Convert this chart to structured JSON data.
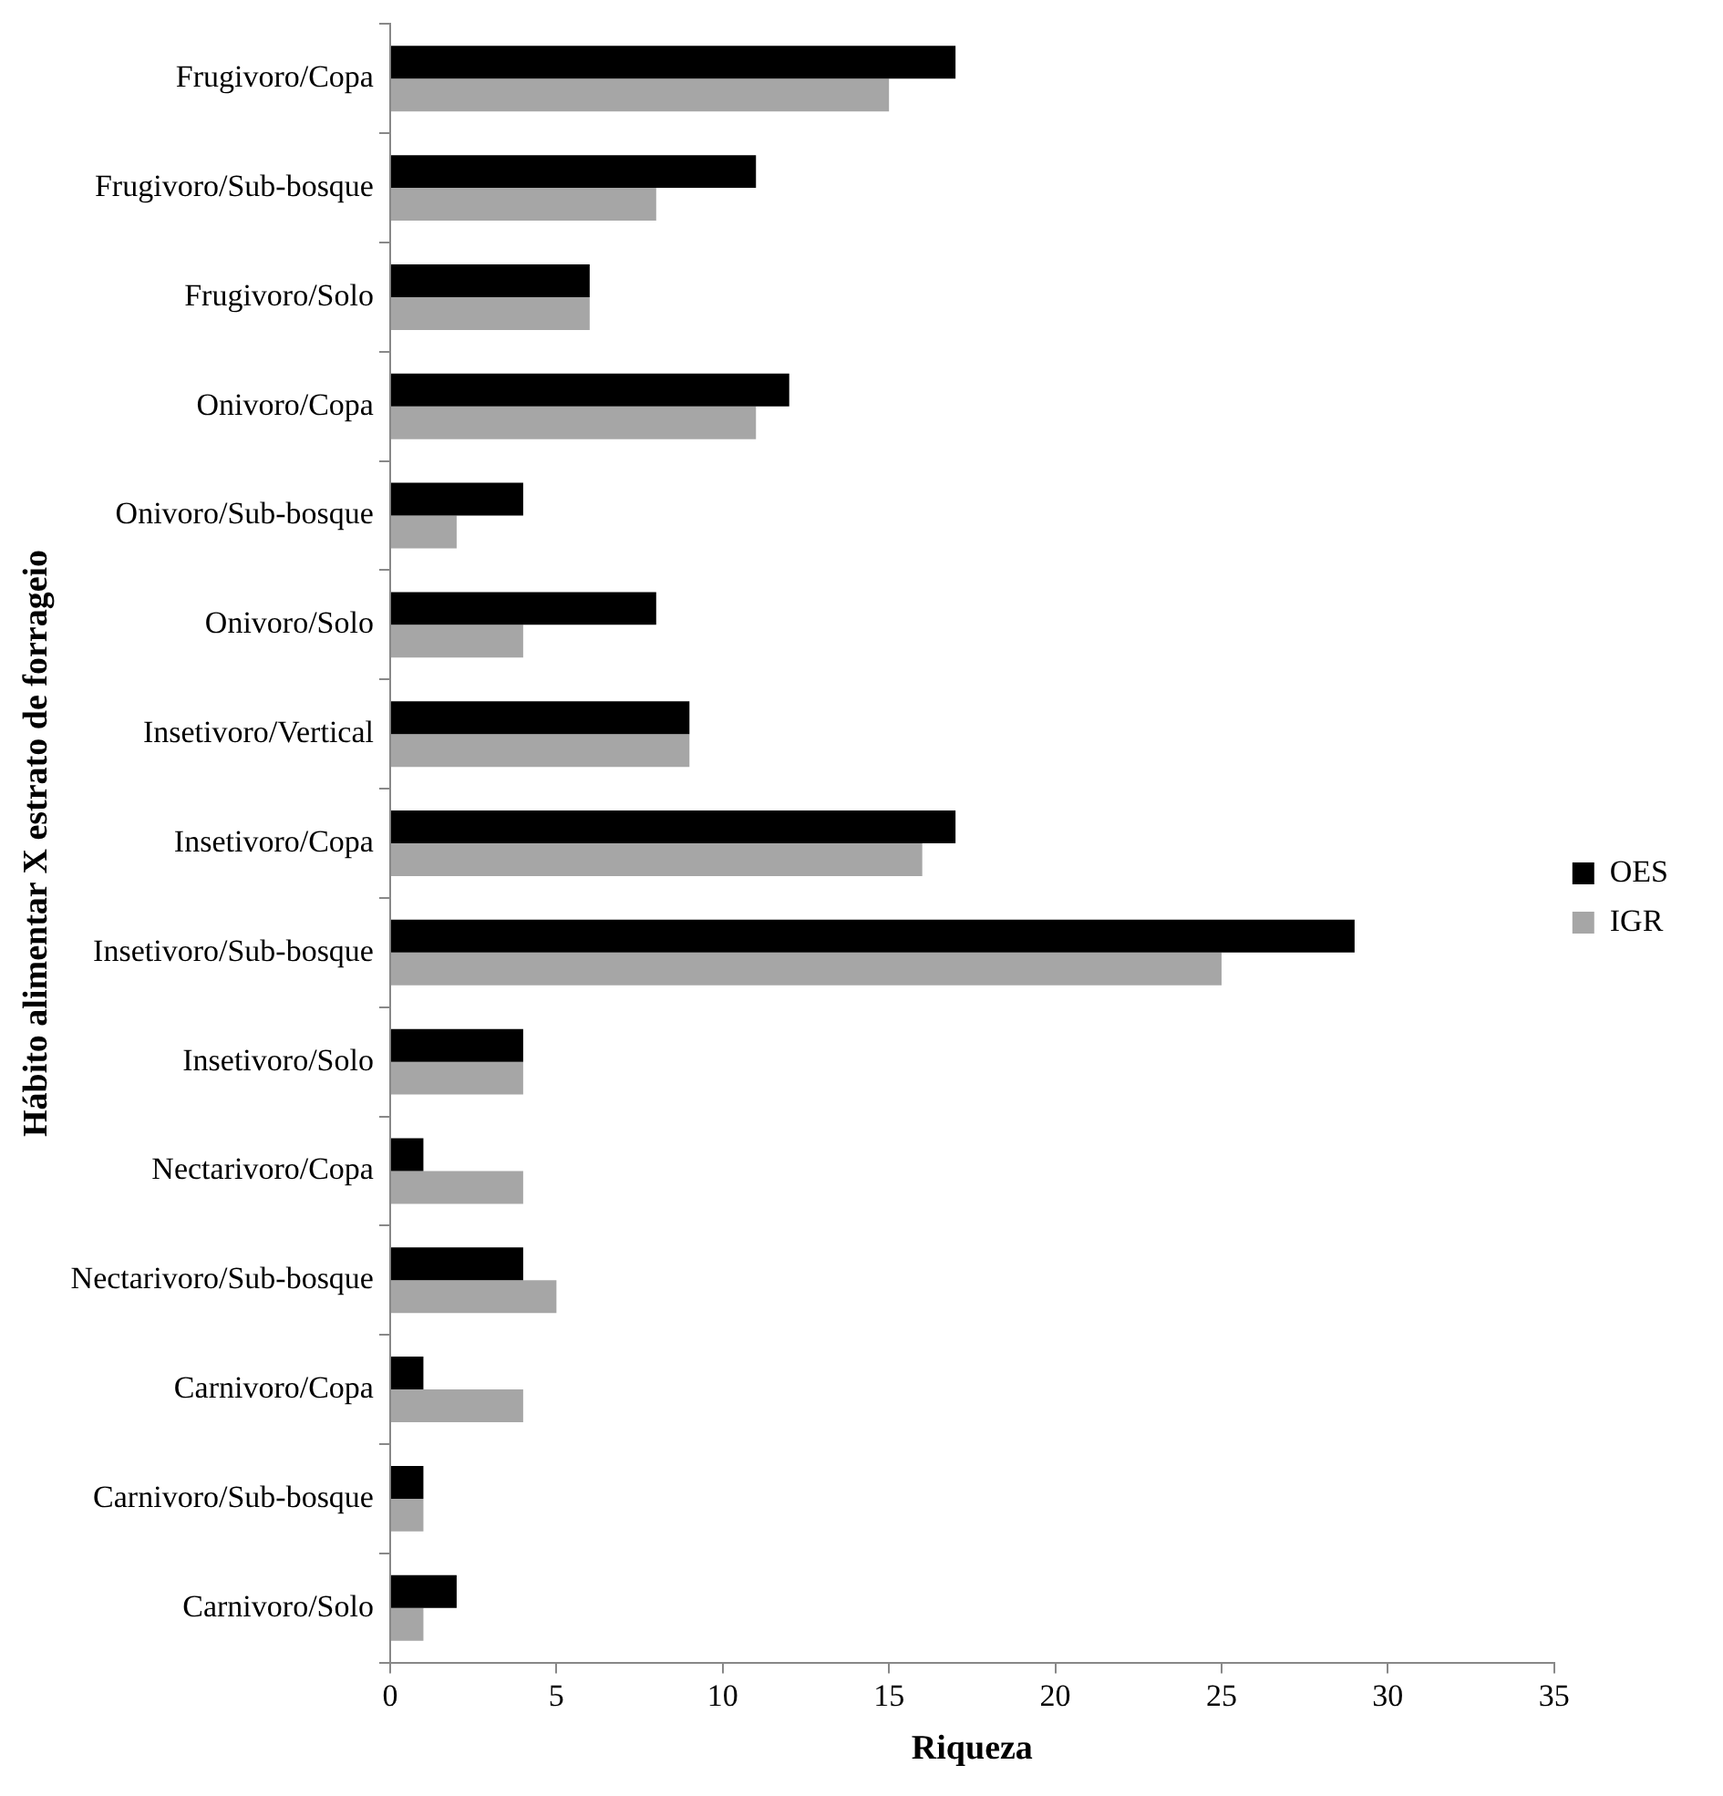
{
  "chart_data": {
    "type": "bar",
    "orientation": "horizontal",
    "xlabel": "Riqueza",
    "ylabel": "Hábito alimentar X estrato de forrageio",
    "categories": [
      "Frugivoro/Copa",
      "Frugivoro/Sub-bosque",
      "Frugivoro/Solo",
      "Onivoro/Copa",
      "Onivoro/Sub-bosque",
      "Onivoro/Solo",
      "Insetivoro/Vertical",
      "Insetivoro/Copa",
      "Insetivoro/Sub-bosque",
      "Insetivoro/Solo",
      "Nectarivoro/Copa",
      "Nectarivoro/Sub-bosque",
      "Carnivoro/Copa",
      "Carnivoro/Sub-bosque",
      "Carnivoro/Solo"
    ],
    "series": [
      {
        "name": "OES",
        "color": "#000000",
        "values": [
          17,
          11,
          6,
          12,
          4,
          8,
          9,
          17,
          29,
          4,
          1,
          4,
          1,
          1,
          2
        ]
      },
      {
        "name": "IGR",
        "color": "#a6a6a6",
        "values": [
          15,
          8,
          6,
          11,
          2,
          4,
          9,
          16,
          25,
          4,
          4,
          5,
          4,
          1,
          1
        ]
      }
    ],
    "xlim": [
      0,
      35
    ],
    "xticks": [
      0,
      5,
      10,
      15,
      20,
      25,
      30,
      35
    ],
    "grid": false,
    "legend": "right"
  }
}
